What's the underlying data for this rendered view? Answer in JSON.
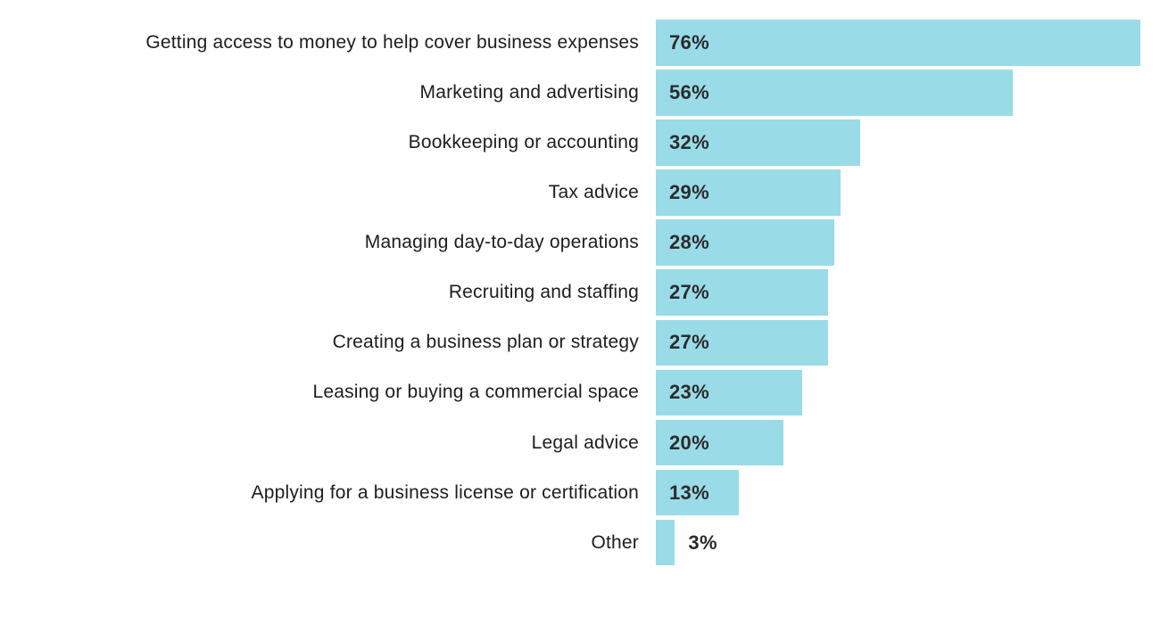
{
  "page": {
    "background_color": "#ffffff"
  },
  "chart_data": {
    "type": "bar",
    "orientation": "horizontal",
    "title": "",
    "xlabel": "",
    "ylabel": "",
    "xlim": [
      0,
      80
    ],
    "grid": false,
    "legend": false,
    "bar_color": "#9ADBE8",
    "category_text_color": "#1d1d1d",
    "value_text_color": "#2b2b2b",
    "value_label_position": "inside-left (outside for smallest bar)",
    "categories": [
      "Getting access to money to help cover business expenses",
      "Marketing and advertising",
      "Bookkeeping or accounting",
      "Tax advice",
      "Managing day-to-day operations",
      "Recruiting and staffing",
      "Creating a business plan or strategy",
      "Leasing or buying a commercial space",
      "Legal advice",
      "Applying for a business license or certification",
      "Other"
    ],
    "values": [
      76,
      56,
      32,
      29,
      28,
      27,
      27,
      23,
      20,
      13,
      3
    ],
    "value_labels": [
      "76%",
      "56%",
      "32%",
      "29%",
      "28%",
      "27%",
      "27%",
      "23%",
      "20%",
      "13%",
      "3%"
    ]
  }
}
